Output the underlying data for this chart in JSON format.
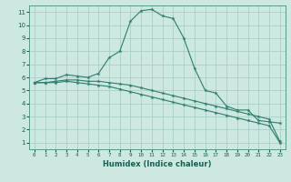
{
  "xlabel": "Humidex (Indice chaleur)",
  "bg_color": "#cce8e0",
  "grid_color": "#aacec6",
  "line_color": "#2e7d6e",
  "xlim": [
    -0.5,
    23.5
  ],
  "ylim": [
    0.5,
    11.5
  ],
  "xticks": [
    0,
    1,
    2,
    3,
    4,
    5,
    6,
    7,
    8,
    9,
    10,
    11,
    12,
    13,
    14,
    15,
    16,
    17,
    18,
    19,
    20,
    21,
    22,
    23
  ],
  "yticks": [
    1,
    2,
    3,
    4,
    5,
    6,
    7,
    8,
    9,
    10,
    11
  ],
  "series": [
    {
      "x": [
        0,
        1,
        2,
        3,
        4,
        5,
        6,
        7,
        8,
        9,
        10,
        11,
        12,
        13,
        14,
        15,
        16,
        17,
        18,
        19,
        20,
        21,
        22,
        23
      ],
      "y": [
        5.6,
        5.9,
        5.9,
        6.2,
        6.1,
        6.0,
        6.3,
        7.5,
        8.0,
        10.3,
        11.1,
        11.2,
        10.7,
        10.5,
        9.0,
        6.7,
        5.0,
        4.8,
        3.8,
        3.5,
        3.5,
        2.7,
        2.6,
        2.5
      ]
    },
    {
      "x": [
        0,
        1,
        2,
        3,
        4,
        5,
        6,
        7,
        8,
        9,
        10,
        11,
        12,
        13,
        14,
        15,
        16,
        17,
        18,
        19,
        20,
        21,
        22,
        23
      ],
      "y": [
        5.6,
        5.6,
        5.7,
        5.8,
        5.8,
        5.7,
        5.7,
        5.6,
        5.5,
        5.4,
        5.2,
        5.0,
        4.8,
        4.6,
        4.4,
        4.2,
        4.0,
        3.8,
        3.6,
        3.4,
        3.2,
        3.0,
        2.8,
        1.1
      ]
    },
    {
      "x": [
        0,
        1,
        2,
        3,
        4,
        5,
        6,
        7,
        8,
        9,
        10,
        11,
        12,
        13,
        14,
        15,
        16,
        17,
        18,
        19,
        20,
        21,
        22,
        23
      ],
      "y": [
        5.6,
        5.6,
        5.6,
        5.7,
        5.6,
        5.5,
        5.4,
        5.3,
        5.1,
        4.9,
        4.7,
        4.5,
        4.3,
        4.1,
        3.9,
        3.7,
        3.5,
        3.3,
        3.1,
        2.9,
        2.7,
        2.5,
        2.3,
        1.0
      ]
    }
  ]
}
